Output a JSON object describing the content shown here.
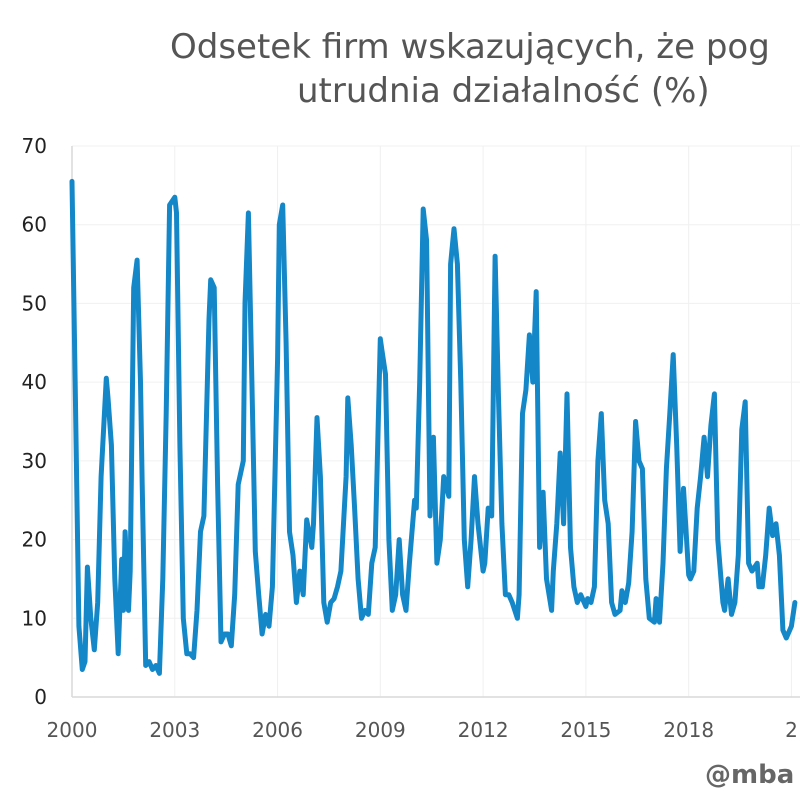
{
  "chart_data": {
    "type": "line",
    "title": [
      "Odsetek firm wskazujących, że pog",
      "utrudnia działalność (%)"
    ],
    "xlabel": "",
    "ylabel": "",
    "xlim": [
      2000,
      2021.25
    ],
    "ylim": [
      0,
      70
    ],
    "yticks": [
      "0",
      "10",
      "20",
      "30",
      "40",
      "50",
      "60",
      "70"
    ],
    "xticks": [
      "2000",
      "2003",
      "2006",
      "2009",
      "2012",
      "2015",
      "2018",
      "2"
    ],
    "grid": true,
    "legend": "none",
    "color": "#1487c8",
    "series": [
      {
        "x": [
          2000.0,
          2000.1,
          2000.2,
          2000.3,
          2000.38,
          2000.45,
          2000.55,
          2000.65,
          2000.75,
          2000.85,
          2001.0,
          2001.05,
          2001.15,
          2001.25,
          2001.35,
          2001.45,
          2001.5,
          2001.55,
          2001.65,
          2001.7,
          2001.8,
          2001.9,
          2002.0,
          2002.05,
          2002.15,
          2002.25,
          2002.35,
          2002.45,
          2002.55,
          2002.65,
          2002.75,
          2002.85,
          2003.0,
          2003.05,
          2003.15,
          2003.25,
          2003.35,
          2003.45,
          2003.55,
          2003.65,
          2003.75,
          2003.85,
          2004.0,
          2004.05,
          2004.15,
          2004.25,
          2004.35,
          2004.45,
          2004.55,
          2004.65,
          2004.75,
          2004.85,
          2005.0,
          2005.05,
          2005.15,
          2005.25,
          2005.35,
          2005.45,
          2005.55,
          2005.65,
          2005.75,
          2005.85,
          2006.0,
          2006.05,
          2006.15,
          2006.25,
          2006.35,
          2006.45,
          2006.55,
          2006.65,
          2006.75,
          2006.85,
          2007.0,
          2007.05,
          2007.15,
          2007.25,
          2007.35,
          2007.45,
          2007.55,
          2007.65,
          2007.75,
          2007.85,
          2008.0,
          2008.05,
          2008.15,
          2008.25,
          2008.35,
          2008.45,
          2008.55,
          2008.65,
          2008.75,
          2008.85,
          2009.0,
          2009.05,
          2009.15,
          2009.25,
          2009.35,
          2009.45,
          2009.55,
          2009.65,
          2009.75,
          2009.85,
          2010.0,
          2010.05,
          2010.15,
          2010.25,
          2010.35,
          2010.45,
          2010.55,
          2010.65,
          2010.75,
          2010.85,
          2011.0,
          2011.05,
          2011.15,
          2011.25,
          2011.35,
          2011.45,
          2011.55,
          2011.65,
          2011.75,
          2011.85,
          2012.0,
          2012.05,
          2012.15,
          2012.25,
          2012.35,
          2012.45,
          2012.55,
          2012.65,
          2012.75,
          2012.85,
          2013.0,
          2013.05,
          2013.15,
          2013.25,
          2013.35,
          2013.45,
          2013.55,
          2013.65,
          2013.75,
          2013.85,
          2014.0,
          2014.05,
          2014.15,
          2014.25,
          2014.35,
          2014.45,
          2014.55,
          2014.65,
          2014.75,
          2014.85,
          2015.0,
          2015.05,
          2015.15,
          2015.25,
          2015.35,
          2015.45,
          2015.55,
          2015.65,
          2015.75,
          2015.85,
          2016.0,
          2016.05,
          2016.15,
          2016.25,
          2016.35,
          2016.45,
          2016.55,
          2016.65,
          2016.75,
          2016.85,
          2017.0,
          2017.05,
          2017.15,
          2017.25,
          2017.35,
          2017.45,
          2017.55,
          2017.65,
          2017.75,
          2017.85,
          2018.0,
          2018.05,
          2018.15,
          2018.25,
          2018.35,
          2018.45,
          2018.55,
          2018.65,
          2018.75,
          2018.85,
          2019.0,
          2019.05,
          2019.15,
          2019.25,
          2019.35,
          2019.45,
          2019.55,
          2019.65,
          2019.75,
          2019.85,
          2020.0,
          2020.05,
          2020.15,
          2020.25,
          2020.35,
          2020.45,
          2020.55,
          2020.65,
          2020.75,
          2020.85,
          2021.0,
          2021.1
        ],
        "y": [
          65.5,
          38,
          9,
          3.5,
          4.5,
          16.5,
          10,
          6,
          12,
          28,
          40.5,
          38,
          32,
          15,
          5.5,
          17.5,
          11,
          21,
          11,
          16,
          52,
          55.5,
          40,
          27,
          4,
          4.5,
          3.5,
          4,
          3,
          15,
          36,
          62.5,
          63.5,
          61.5,
          32,
          10,
          5.5,
          5.5,
          5,
          11,
          21,
          23,
          48,
          53,
          52,
          27,
          7,
          8,
          8,
          6.5,
          13,
          27,
          30,
          50,
          61.5,
          40,
          18.5,
          13,
          8,
          10.5,
          9,
          14,
          43,
          60,
          62.5,
          45,
          21,
          18,
          12,
          16,
          13,
          22.5,
          19,
          22,
          35.5,
          28,
          12,
          9.5,
          12,
          12.5,
          14,
          16,
          28,
          38,
          32,
          24,
          15,
          10,
          11,
          10.5,
          17,
          19,
          45.5,
          44,
          41,
          20,
          11,
          13,
          20,
          13,
          11,
          17,
          25,
          24,
          40,
          62,
          58,
          23,
          33,
          17,
          20,
          28,
          25.5,
          55,
          59.5,
          55,
          40,
          20,
          14,
          20,
          28,
          22,
          16,
          17,
          24,
          23,
          56,
          38,
          22,
          13,
          13,
          12,
          10,
          13,
          36,
          39,
          46,
          40,
          51.5,
          19,
          26,
          15,
          11,
          16,
          22,
          31,
          22,
          38.5,
          19,
          14,
          12,
          13,
          11.5,
          12.5,
          12,
          14,
          30,
          36,
          25,
          22,
          12,
          10.5,
          11,
          13.5,
          12,
          14.5,
          21,
          35,
          30,
          29,
          15,
          10,
          9.5,
          12.5,
          9.5,
          17,
          29,
          36,
          43.5,
          32,
          18.5,
          26.5,
          15.5,
          15,
          16,
          24,
          28,
          33,
          28,
          34.5,
          38.5,
          20,
          12,
          11,
          15,
          10.5,
          12,
          18,
          34,
          37.5,
          17,
          16,
          17,
          14,
          14,
          18,
          24,
          20.5,
          22,
          18,
          8.5,
          7.5,
          9,
          12
        ]
      }
    ]
  },
  "watermark": "@mba"
}
